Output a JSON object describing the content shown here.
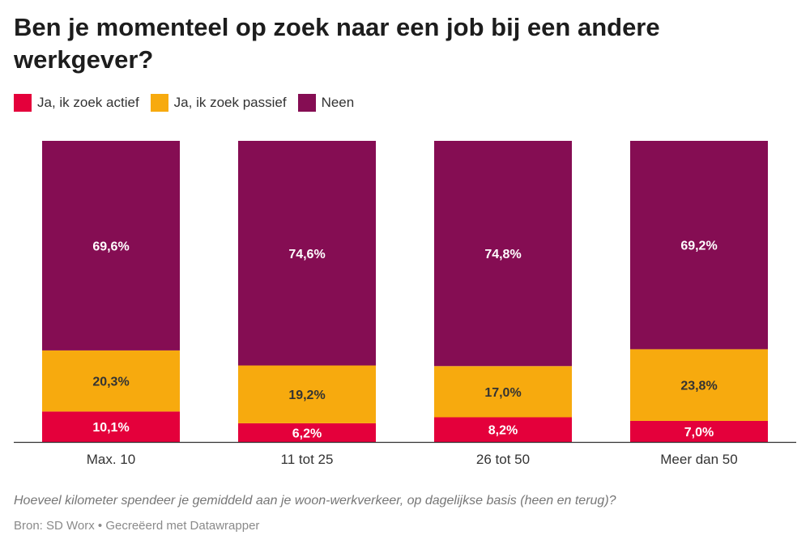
{
  "title": "Ben je momenteel op zoek naar een job bij een andere werkgever?",
  "note": "Hoeveel kilometer spendeer je gemiddeld aan je woon-werkverkeer, op dagelijkse basis (heen en terug)?",
  "source": "Bron: SD Worx • Gecreëerd met Datawrapper",
  "chart_data": {
    "type": "bar",
    "stacked": true,
    "title": "Ben je momenteel op zoek naar een job bij een andere werkgever?",
    "categories": [
      "Max. 10",
      "11 tot 25",
      "26 tot 50",
      "Meer dan 50"
    ],
    "series": [
      {
        "name": "Ja, ik zoek actief",
        "color": "#e4003b",
        "label_color": "#ffffff",
        "values": [
          10.1,
          6.2,
          8.2,
          7.0
        ],
        "labels": [
          "10,1%",
          "6,2%",
          "8,2%",
          "7,0%"
        ]
      },
      {
        "name": "Ja, ik zoek passief",
        "color": "#f7aa0e",
        "label_color": "#333333",
        "values": [
          20.3,
          19.2,
          17.0,
          23.8
        ],
        "labels": [
          "20,3%",
          "19,2%",
          "17,0%",
          "23,8%"
        ]
      },
      {
        "name": "Neen",
        "color": "#850d53",
        "label_color": "#ffffff",
        "values": [
          69.6,
          74.6,
          74.8,
          69.2
        ],
        "labels": [
          "69,6%",
          "74,6%",
          "74,8%",
          "69,2%"
        ]
      }
    ],
    "ylim": [
      0,
      100
    ],
    "legend": "top-left",
    "grid": false
  }
}
